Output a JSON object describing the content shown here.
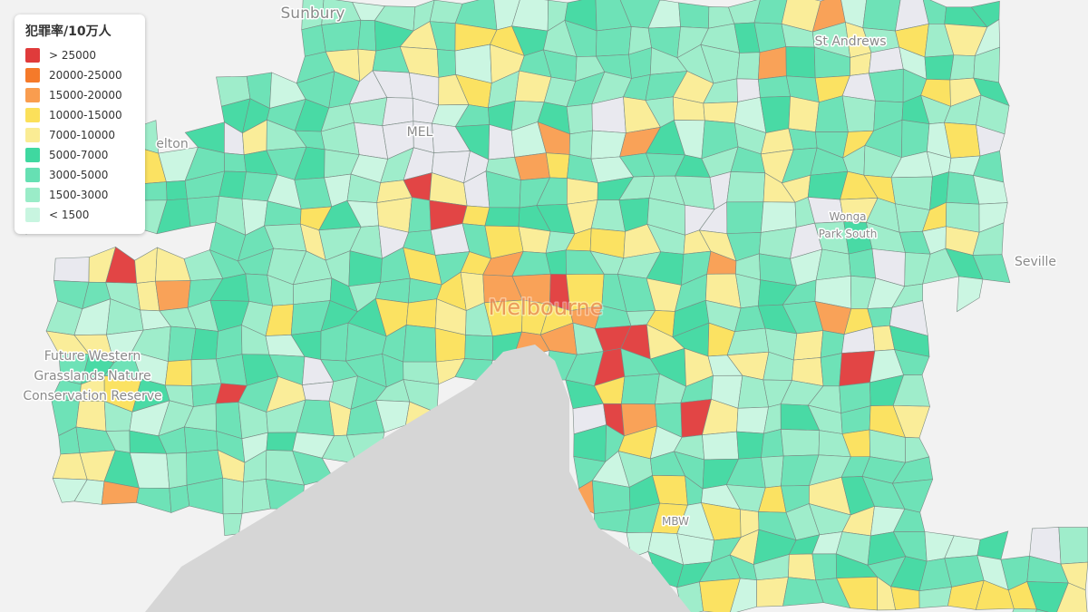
{
  "legend": {
    "title": "犯罪率/10万人",
    "items": [
      {
        "label": "> 25000",
        "color": "#e03b3b"
      },
      {
        "label": "20000-25000",
        "color": "#f57a2a"
      },
      {
        "label": "15000-20000",
        "color": "#f99d4f"
      },
      {
        "label": "10000-15000",
        "color": "#fbe05a"
      },
      {
        "label": "7000-10000",
        "color": "#faec94"
      },
      {
        "label": "5000-7000",
        "color": "#3fd8a0"
      },
      {
        "label": "3000-5000",
        "color": "#66e0b3"
      },
      {
        "label": "1500-3000",
        "color": "#9aecc8"
      },
      {
        "label": "< 1500",
        "color": "#c8f5e0"
      }
    ]
  },
  "places": [
    {
      "label": "Sunbury"
    },
    {
      "label": "St Andrews"
    },
    {
      "label": "MEL"
    },
    {
      "label": "Melbourne"
    },
    {
      "label": "Seville"
    },
    {
      "label": "Future Western"
    },
    {
      "label": "Grasslands Nature"
    },
    {
      "label": "Conservation Reserve"
    },
    {
      "label": "Wonga"
    },
    {
      "label": "Park South"
    },
    {
      "label": "MBW"
    },
    {
      "label": "elton"
    }
  ]
}
